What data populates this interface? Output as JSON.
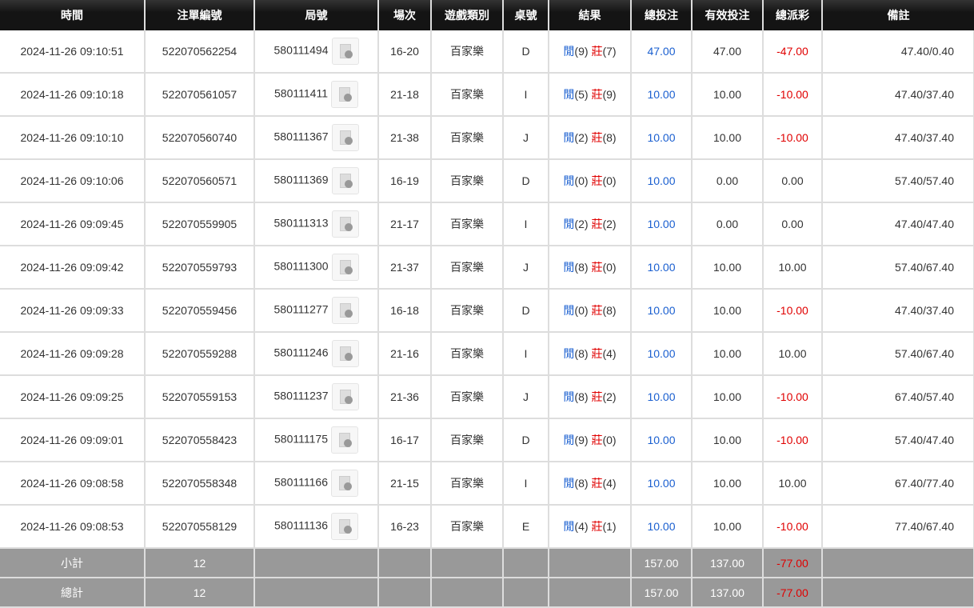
{
  "headers": [
    "時間",
    "注單編號",
    "局號",
    "場次",
    "遊戲類別",
    "桌號",
    "結果",
    "總投注",
    "有效投注",
    "總派彩",
    "備註"
  ],
  "result_labels": {
    "player": "閒",
    "banker": "莊"
  },
  "rows": [
    {
      "time": "2024-11-26 09:10:51",
      "bet_id": "522070562254",
      "round": "580111494",
      "shoe": "16-20",
      "game": "百家樂",
      "table": "D",
      "player": "(9)",
      "banker": "(7)",
      "total": "47.00",
      "valid": "47.00",
      "payout": "-47.00",
      "note": "47.40/0.40"
    },
    {
      "time": "2024-11-26 09:10:18",
      "bet_id": "522070561057",
      "round": "580111411",
      "shoe": "21-18",
      "game": "百家樂",
      "table": "I",
      "player": "(5)",
      "banker": "(9)",
      "total": "10.00",
      "valid": "10.00",
      "payout": "-10.00",
      "note": "47.40/37.40"
    },
    {
      "time": "2024-11-26 09:10:10",
      "bet_id": "522070560740",
      "round": "580111367",
      "shoe": "21-38",
      "game": "百家樂",
      "table": "J",
      "player": "(2)",
      "banker": "(8)",
      "total": "10.00",
      "valid": "10.00",
      "payout": "-10.00",
      "note": "47.40/37.40"
    },
    {
      "time": "2024-11-26 09:10:06",
      "bet_id": "522070560571",
      "round": "580111369",
      "shoe": "16-19",
      "game": "百家樂",
      "table": "D",
      "player": "(0)",
      "banker": "(0)",
      "total": "10.00",
      "valid": "0.00",
      "payout": "0.00",
      "note": "57.40/57.40"
    },
    {
      "time": "2024-11-26 09:09:45",
      "bet_id": "522070559905",
      "round": "580111313",
      "shoe": "21-17",
      "game": "百家樂",
      "table": "I",
      "player": "(2)",
      "banker": "(2)",
      "total": "10.00",
      "valid": "0.00",
      "payout": "0.00",
      "note": "47.40/47.40"
    },
    {
      "time": "2024-11-26 09:09:42",
      "bet_id": "522070559793",
      "round": "580111300",
      "shoe": "21-37",
      "game": "百家樂",
      "table": "J",
      "player": "(8)",
      "banker": "(0)",
      "total": "10.00",
      "valid": "10.00",
      "payout": "10.00",
      "note": "57.40/67.40"
    },
    {
      "time": "2024-11-26 09:09:33",
      "bet_id": "522070559456",
      "round": "580111277",
      "shoe": "16-18",
      "game": "百家樂",
      "table": "D",
      "player": "(0)",
      "banker": "(8)",
      "total": "10.00",
      "valid": "10.00",
      "payout": "-10.00",
      "note": "47.40/37.40"
    },
    {
      "time": "2024-11-26 09:09:28",
      "bet_id": "522070559288",
      "round": "580111246",
      "shoe": "21-16",
      "game": "百家樂",
      "table": "I",
      "player": "(8)",
      "banker": "(4)",
      "total": "10.00",
      "valid": "10.00",
      "payout": "10.00",
      "note": "57.40/67.40"
    },
    {
      "time": "2024-11-26 09:09:25",
      "bet_id": "522070559153",
      "round": "580111237",
      "shoe": "21-36",
      "game": "百家樂",
      "table": "J",
      "player": "(8)",
      "banker": "(2)",
      "total": "10.00",
      "valid": "10.00",
      "payout": "-10.00",
      "note": "67.40/57.40"
    },
    {
      "time": "2024-11-26 09:09:01",
      "bet_id": "522070558423",
      "round": "580111175",
      "shoe": "16-17",
      "game": "百家樂",
      "table": "D",
      "player": "(9)",
      "banker": "(0)",
      "total": "10.00",
      "valid": "10.00",
      "payout": "-10.00",
      "note": "57.40/47.40"
    },
    {
      "time": "2024-11-26 09:08:58",
      "bet_id": "522070558348",
      "round": "580111166",
      "shoe": "21-15",
      "game": "百家樂",
      "table": "I",
      "player": "(8)",
      "banker": "(4)",
      "total": "10.00",
      "valid": "10.00",
      "payout": "10.00",
      "note": "67.40/77.40"
    },
    {
      "time": "2024-11-26 09:08:53",
      "bet_id": "522070558129",
      "round": "580111136",
      "shoe": "16-23",
      "game": "百家樂",
      "table": "E",
      "player": "(4)",
      "banker": "(1)",
      "total": "10.00",
      "valid": "10.00",
      "payout": "-10.00",
      "note": "77.40/67.40"
    }
  ],
  "subtotal": {
    "label": "小計",
    "count": "12",
    "total": "157.00",
    "valid": "137.00",
    "payout": "-77.00"
  },
  "grandtotal": {
    "label": "總計",
    "count": "12",
    "total": "157.00",
    "valid": "137.00",
    "payout": "-77.00"
  },
  "colors": {
    "blue": "#1a5fd0",
    "red": "#e00000",
    "header_bg": "#141414",
    "footer_bg": "#999999"
  },
  "icons": {
    "replay": "video-replay-icon"
  }
}
